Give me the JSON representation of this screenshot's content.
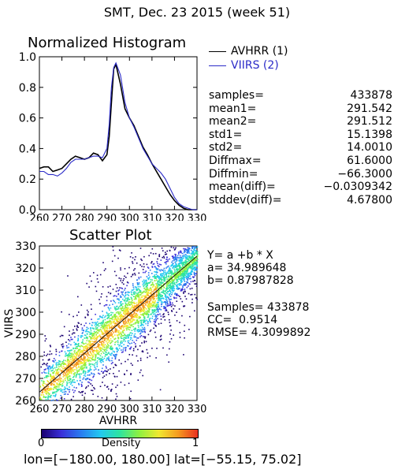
{
  "header": {
    "title": "SMT,  Dec. 23 2015 (week 51)"
  },
  "footer": {
    "range_text": "lon=[−180.00, 180.00] lat=[−55.15, 75.02]"
  },
  "colorbar": {
    "label": "Density",
    "min_label": "0",
    "max_label": "1",
    "colors": [
      "#1a0070",
      "#3a2fd8",
      "#2a7bf0",
      "#22c8f0",
      "#2ee4a0",
      "#8ef040",
      "#f0e830",
      "#f59a20",
      "#e83020"
    ]
  },
  "histogram_stats": [
    {
      "label": "samples=",
      "value": "433878"
    },
    {
      "label": "mean1=",
      "value": "291.542"
    },
    {
      "label": "mean2=",
      "value": "291.512"
    },
    {
      "label": "std1=",
      "value": "15.1398"
    },
    {
      "label": "std2=",
      "value": "14.0010"
    },
    {
      "label": "Diffmax=",
      "value": "61.6000"
    },
    {
      "label": "Diffmin=",
      "value": "−66.3000"
    },
    {
      "label": "mean(diff)=",
      "value": "−0.0309342"
    },
    {
      "label": "stddev(diff)=",
      "value": "4.67800"
    }
  ],
  "scatter_stats": {
    "equation": "Y= a +b * X",
    "a_line": "a= 34.989648",
    "b_line": "b= 0.87987828",
    "samples_line": "Samples= 433878",
    "cc_line": "CC=  0.9514",
    "rmse_line": "RMSE= 4.3099892"
  },
  "colors": {
    "avhrr": "#000000",
    "viirs": "#2b2bc8",
    "fit_line": "#111111"
  },
  "chart_data": [
    {
      "type": "line",
      "title": "Normalized Histogram",
      "xlabel": "",
      "ylabel": "",
      "xlim": [
        260,
        330
      ],
      "ylim": [
        0.0,
        1.0
      ],
      "x_ticks": [
        "260",
        "270",
        "280",
        "290",
        "300",
        "310",
        "320",
        "330"
      ],
      "y_ticks": [
        "0.0",
        "0.2",
        "0.4",
        "0.6",
        "0.8",
        "1.0"
      ],
      "x": [
        260,
        262,
        264,
        266,
        268,
        270,
        272,
        274,
        276,
        278,
        280,
        282,
        284,
        286,
        288,
        290,
        291,
        292,
        293,
        294,
        296,
        298,
        300,
        302,
        304,
        306,
        308,
        310,
        312,
        314,
        316,
        318,
        320,
        322,
        324,
        326,
        328,
        330
      ],
      "series": [
        {
          "name": "AVHRR (1)",
          "values": [
            0.27,
            0.28,
            0.28,
            0.25,
            0.26,
            0.27,
            0.3,
            0.33,
            0.35,
            0.34,
            0.33,
            0.34,
            0.37,
            0.36,
            0.32,
            0.36,
            0.48,
            0.7,
            0.92,
            0.95,
            0.82,
            0.66,
            0.6,
            0.55,
            0.48,
            0.41,
            0.36,
            0.3,
            0.25,
            0.2,
            0.15,
            0.1,
            0.06,
            0.03,
            0.01,
            0.0,
            0.0,
            0.0
          ]
        },
        {
          "name": "VIIRS (2)",
          "values": [
            0.25,
            0.25,
            0.23,
            0.23,
            0.22,
            0.24,
            0.27,
            0.31,
            0.33,
            0.33,
            0.33,
            0.34,
            0.35,
            0.35,
            0.34,
            0.4,
            0.56,
            0.8,
            0.93,
            0.96,
            0.88,
            0.7,
            0.6,
            0.54,
            0.47,
            0.4,
            0.35,
            0.3,
            0.27,
            0.24,
            0.2,
            0.14,
            0.08,
            0.04,
            0.02,
            0.01,
            0.0,
            0.0
          ]
        }
      ],
      "legend": "top-right"
    },
    {
      "type": "heatmap",
      "title": "Scatter Plot",
      "xlabel": "AVHRR",
      "ylabel": "VIIRS",
      "xlim": [
        260,
        330
      ],
      "ylim": [
        260,
        330
      ],
      "x_ticks": [
        "260",
        "270",
        "280",
        "290",
        "300",
        "310",
        "320",
        "330"
      ],
      "y_ticks": [
        "260",
        "270",
        "280",
        "290",
        "300",
        "310",
        "320",
        "330"
      ],
      "fit": {
        "a": 34.989648,
        "b": 0.87987828
      },
      "colorbar_range": [
        0,
        1
      ]
    }
  ]
}
